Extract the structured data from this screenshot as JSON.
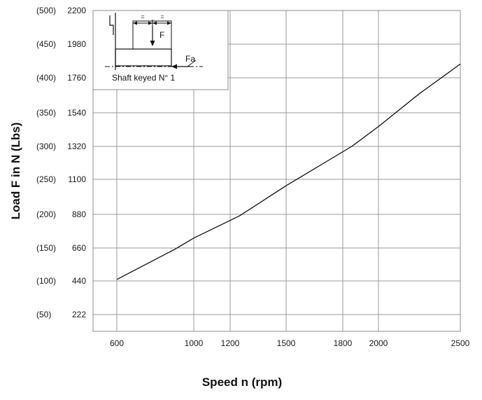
{
  "chart_data": {
    "type": "line",
    "xlabel": "Speed n (rpm)",
    "ylabel": "Load F in N (Lbs)",
    "x_ticks": [
      600,
      1000,
      1200,
      1500,
      1800,
      2000,
      2500
    ],
    "y_ticks": [
      {
        "value": 222,
        "label": "222",
        "lbs_label": "(50)"
      },
      {
        "value": 440,
        "label": "440",
        "lbs_label": "(100)"
      },
      {
        "value": 660,
        "label": "660",
        "lbs_label": "(150)"
      },
      {
        "value": 880,
        "label": "880",
        "lbs_label": "(200)"
      },
      {
        "value": 1100,
        "label": "1100",
        "lbs_label": "(250)"
      },
      {
        "value": 1320,
        "label": "1320",
        "lbs_label": "(300)"
      },
      {
        "value": 1540,
        "label": "1540",
        "lbs_label": "(350)"
      },
      {
        "value": 1760,
        "label": "1760",
        "lbs_label": "(400)"
      },
      {
        "value": 1980,
        "label": "1980",
        "lbs_label": "(450)"
      },
      {
        "value": 2200,
        "label": "2200",
        "lbs_label": "(500)"
      }
    ],
    "xlim": [
      440,
      2500
    ],
    "ylim": [
      0,
      2200
    ],
    "grid": true,
    "series": [
      {
        "x": [
          600,
          900,
          1000,
          1250,
          1500,
          1850,
          2000,
          2250,
          2500
        ],
        "y": [
          450,
          650,
          725,
          870,
          1060,
          1320,
          1450,
          1660,
          1850
        ]
      }
    ],
    "line_color": "#111111",
    "grid_color": "#9a9a9a"
  },
  "inset": {
    "label_force": "F",
    "label_axial": "Fa",
    "label_equal_left": "=",
    "label_equal_right": "=",
    "caption": "Shaft keyed N° 1"
  }
}
